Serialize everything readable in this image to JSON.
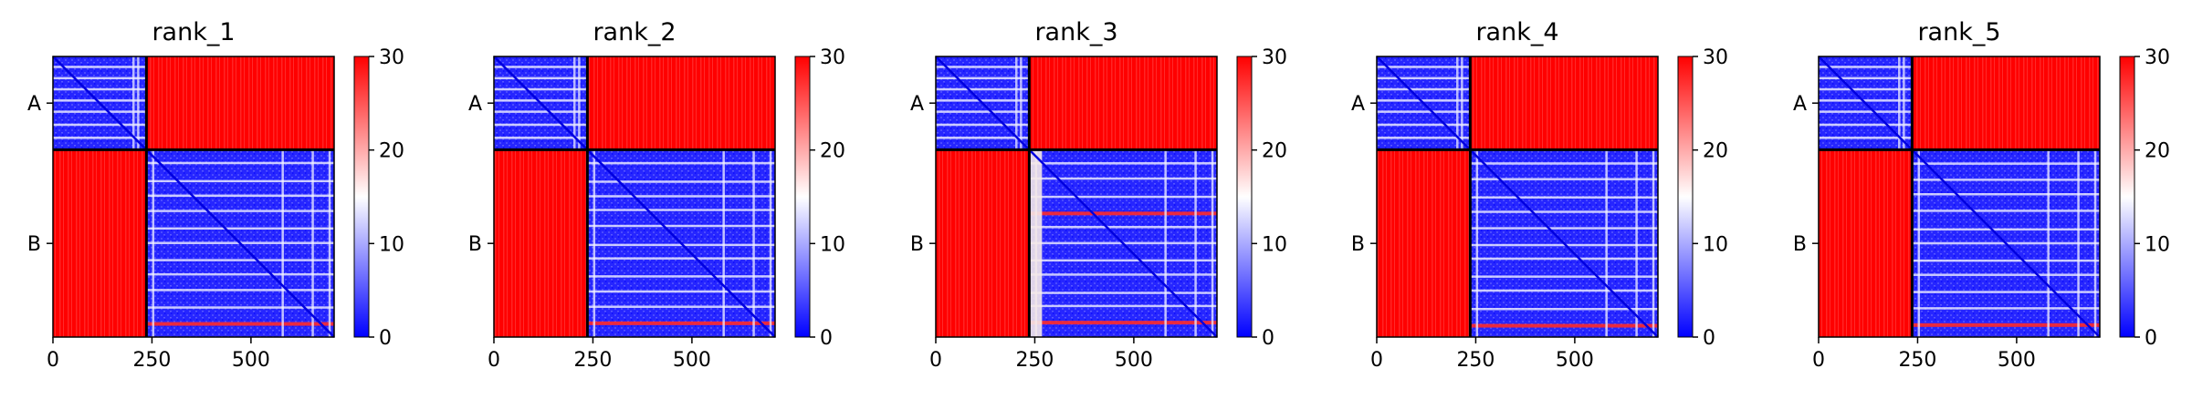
{
  "chart_data": [
    {
      "type": "heatmap",
      "title": "rank_1",
      "chain_labels": [
        "A",
        "B"
      ],
      "x_ticks": [
        0,
        250,
        500
      ],
      "n_residues": 710,
      "chain_boundary": 236,
      "colorbar": {
        "min": 0,
        "max": 30,
        "ticks": [
          0,
          10,
          20,
          30
        ],
        "colors": [
          "#0000ff",
          "#ffffff",
          "#ff0000"
        ]
      }
    },
    {
      "type": "heatmap",
      "title": "rank_2",
      "chain_labels": [
        "A",
        "B"
      ],
      "x_ticks": [
        0,
        250,
        500
      ],
      "n_residues": 710,
      "chain_boundary": 236,
      "colorbar": {
        "min": 0,
        "max": 30,
        "ticks": [
          0,
          10,
          20,
          30
        ],
        "colors": [
          "#0000ff",
          "#ffffff",
          "#ff0000"
        ]
      }
    },
    {
      "type": "heatmap",
      "title": "rank_3",
      "chain_labels": [
        "A",
        "B"
      ],
      "x_ticks": [
        0,
        250,
        500
      ],
      "n_residues": 710,
      "chain_boundary": 236,
      "colorbar": {
        "min": 0,
        "max": 30,
        "ticks": [
          0,
          10,
          20,
          30
        ],
        "colors": [
          "#0000ff",
          "#ffffff",
          "#ff0000"
        ]
      }
    },
    {
      "type": "heatmap",
      "title": "rank_4",
      "chain_labels": [
        "A",
        "B"
      ],
      "x_ticks": [
        0,
        250,
        500
      ],
      "n_residues": 710,
      "chain_boundary": 236,
      "colorbar": {
        "min": 0,
        "max": 30,
        "ticks": [
          0,
          10,
          20,
          30
        ],
        "colors": [
          "#0000ff",
          "#ffffff",
          "#ff0000"
        ]
      }
    },
    {
      "type": "heatmap",
      "title": "rank_5",
      "chain_labels": [
        "A",
        "B"
      ],
      "x_ticks": [
        0,
        250,
        500
      ],
      "n_residues": 710,
      "chain_boundary": 236,
      "colorbar": {
        "min": 0,
        "max": 30,
        "ticks": [
          0,
          10,
          20,
          30
        ],
        "colors": [
          "#0000ff",
          "#ffffff",
          "#ff0000"
        ]
      }
    }
  ]
}
